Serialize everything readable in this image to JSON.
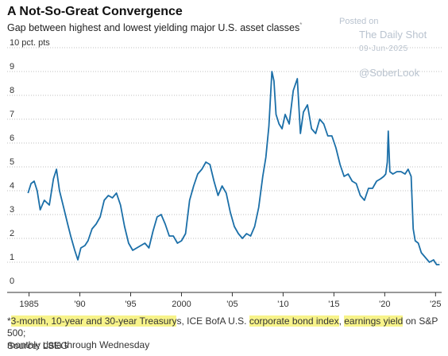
{
  "title": "A Not-So-Great Convergence",
  "subtitle": "Gap between highest and lowest yielding major U.S. asset classes",
  "subtitle_marker": "*",
  "watermark": {
    "line1": "Posted on",
    "line2": "The Daily Shot",
    "line3": "09-Jun-2025",
    "line4": "@SoberLook"
  },
  "footnote": {
    "marker": "*",
    "hl1": "3-month, 10-year and 30-year Treasury",
    "t1": "s, ICE BofA U.S. ",
    "hl2": "corporate bond index",
    "t2": ", ",
    "hl3": "earnings yield",
    "t3": " on S&P 500;",
    "line2": "monthly data through Wednesday"
  },
  "source": "Source: LSEG",
  "colors": {
    "line": "#1b6fa8",
    "grid": "#bfbfbf",
    "highlight": "#f7f38a"
  },
  "chart_data": {
    "type": "line",
    "y_unit_label": "10 pct. pts",
    "ylim": [
      0,
      10
    ],
    "yticks": [
      0,
      1,
      2,
      3,
      4,
      5,
      6,
      7,
      8,
      9,
      10
    ],
    "xlim": [
      1984.8,
      2025.6
    ],
    "xticks": [
      1985,
      1990,
      1995,
      2000,
      2005,
      2010,
      2015,
      2020,
      2025
    ],
    "xtick_labels": [
      "1985",
      "'90",
      "'95",
      "2000",
      "'05",
      "'10",
      "'15",
      "'20",
      "'25"
    ],
    "grid": "horizontal dotted",
    "series": [
      {
        "x": [
          1984.9,
          1985.2,
          1985.5,
          1985.8,
          1986.1,
          1986.5,
          1987.0,
          1987.4,
          1987.7,
          1988.0,
          1988.4,
          1988.8,
          1989.1,
          1989.5,
          1989.8,
          1990.1,
          1990.5,
          1990.8,
          1991.2,
          1991.6,
          1992.0,
          1992.4,
          1992.8,
          1993.2,
          1993.6,
          1994.0,
          1994.4,
          1994.8,
          1995.2,
          1995.6,
          1996.0,
          1996.4,
          1996.8,
          1997.2,
          1997.6,
          1998.0,
          1998.4,
          1998.8,
          1999.2,
          1999.6,
          2000.0,
          2000.4,
          2000.8,
          2001.2,
          2001.6,
          2002.0,
          2002.4,
          2002.8,
          2003.2,
          2003.6,
          2004.0,
          2004.4,
          2004.8,
          2005.2,
          2005.6,
          2006.0,
          2006.4,
          2006.8,
          2007.2,
          2007.6,
          2008.0,
          2008.3,
          2008.6,
          2008.9,
          2009.1,
          2009.3,
          2009.6,
          2009.9,
          2010.2,
          2010.6,
          2011.0,
          2011.4,
          2011.7,
          2012.0,
          2012.4,
          2012.8,
          2013.2,
          2013.6,
          2014.0,
          2014.4,
          2014.8,
          2015.2,
          2015.6,
          2016.0,
          2016.4,
          2016.8,
          2017.2,
          2017.6,
          2018.0,
          2018.4,
          2018.8,
          2019.2,
          2019.6,
          2019.9,
          2020.1,
          2020.25,
          2020.35,
          2020.5,
          2020.8,
          2021.2,
          2021.6,
          2022.0,
          2022.3,
          2022.6,
          2022.8,
          2023.0,
          2023.3,
          2023.6,
          2024.0,
          2024.4,
          2024.8,
          2025.1,
          2025.4
        ],
        "values": [
          3.9,
          4.3,
          4.4,
          4.0,
          3.2,
          3.6,
          3.4,
          4.5,
          4.9,
          4.0,
          3.3,
          2.6,
          2.1,
          1.5,
          1.1,
          1.6,
          1.7,
          1.9,
          2.4,
          2.6,
          2.9,
          3.6,
          3.8,
          3.7,
          3.9,
          3.4,
          2.5,
          1.8,
          1.5,
          1.6,
          1.7,
          1.8,
          1.6,
          2.3,
          2.9,
          3.0,
          2.6,
          2.1,
          2.1,
          1.8,
          1.9,
          2.2,
          3.6,
          4.2,
          4.7,
          4.9,
          5.2,
          5.1,
          4.4,
          3.8,
          4.2,
          3.9,
          3.1,
          2.5,
          2.2,
          2.0,
          2.2,
          2.1,
          2.5,
          3.3,
          4.6,
          5.4,
          6.7,
          9.0,
          8.6,
          7.2,
          6.8,
          6.6,
          7.2,
          6.8,
          8.2,
          8.7,
          6.4,
          7.3,
          7.6,
          6.6,
          6.4,
          7.0,
          6.8,
          6.3,
          6.3,
          5.8,
          5.1,
          4.6,
          4.7,
          4.4,
          4.3,
          3.8,
          3.6,
          4.1,
          4.1,
          4.4,
          4.5,
          4.6,
          4.7,
          5.2,
          6.5,
          4.8,
          4.7,
          4.8,
          4.8,
          4.7,
          4.9,
          4.6,
          2.4,
          1.9,
          1.8,
          1.4,
          1.2,
          1.0,
          1.1,
          0.9,
          0.9
        ]
      }
    ]
  }
}
